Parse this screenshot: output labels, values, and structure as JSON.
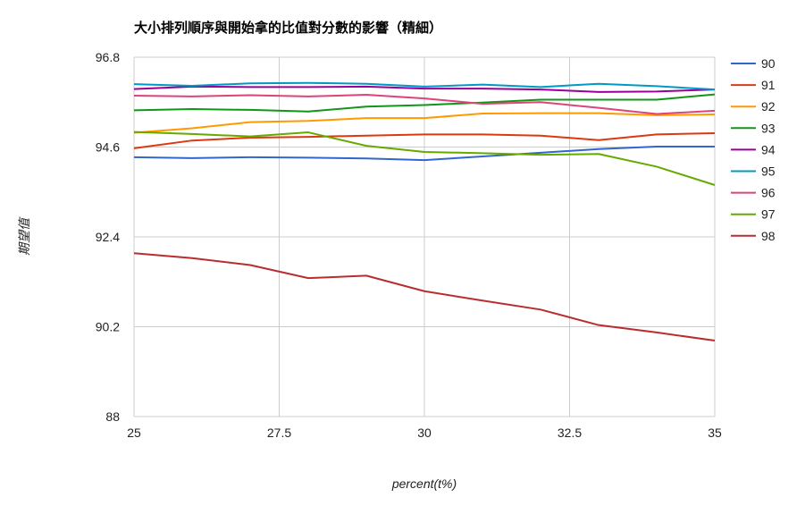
{
  "chart_data": {
    "type": "line",
    "title": "大小排列順序與開始拿的比值對分數的影響（精細）",
    "xlabel": "percent(t%)",
    "ylabel": "期望值",
    "xlim": [
      25,
      35
    ],
    "ylim": [
      88,
      96.8
    ],
    "x_ticks": [
      "25",
      "27.5",
      "30",
      "32.5",
      "35"
    ],
    "y_ticks": [
      "88",
      "90.2",
      "92.4",
      "94.6",
      "96.8"
    ],
    "grid": true,
    "legend_position": "right",
    "x": [
      25,
      26,
      27,
      28,
      29,
      30,
      31,
      32,
      33,
      34,
      35
    ],
    "series": [
      {
        "name": "90",
        "color": "#3366cc",
        "values": [
          94.35,
          94.33,
          94.35,
          94.34,
          94.32,
          94.28,
          94.37,
          94.46,
          94.55,
          94.61,
          94.61
        ]
      },
      {
        "name": "91",
        "color": "#dc3912",
        "values": [
          94.57,
          94.76,
          94.83,
          94.85,
          94.88,
          94.91,
          94.91,
          94.88,
          94.77,
          94.91,
          94.94
        ]
      },
      {
        "name": "92",
        "color": "#ff9900",
        "values": [
          94.95,
          95.06,
          95.21,
          95.24,
          95.31,
          95.31,
          95.42,
          95.43,
          95.43,
          95.38,
          95.4
        ]
      },
      {
        "name": "93",
        "color": "#109618",
        "values": [
          95.5,
          95.53,
          95.51,
          95.47,
          95.59,
          95.63,
          95.69,
          95.76,
          95.76,
          95.76,
          95.89
        ]
      },
      {
        "name": "94",
        "color": "#990099",
        "values": [
          96.02,
          96.08,
          96.07,
          96.07,
          96.08,
          96.03,
          96.03,
          96.01,
          95.95,
          95.96,
          96.01
        ]
      },
      {
        "name": "95",
        "color": "#0099c6",
        "values": [
          96.14,
          96.1,
          96.16,
          96.17,
          96.15,
          96.08,
          96.13,
          96.07,
          96.15,
          96.09,
          96.01
        ]
      },
      {
        "name": "96",
        "color": "#dd4477",
        "values": [
          95.86,
          95.84,
          95.87,
          95.84,
          95.88,
          95.79,
          95.66,
          95.7,
          95.56,
          95.41,
          95.49
        ]
      },
      {
        "name": "97",
        "color": "#66aa00",
        "values": [
          94.97,
          94.92,
          94.86,
          94.96,
          94.63,
          94.48,
          94.45,
          94.41,
          94.43,
          94.12,
          93.67
        ]
      },
      {
        "name": "98",
        "color": "#b82e2e",
        "values": [
          92.0,
          91.88,
          91.71,
          91.39,
          91.45,
          91.07,
          90.84,
          90.62,
          90.24,
          90.06,
          89.86
        ]
      }
    ]
  }
}
